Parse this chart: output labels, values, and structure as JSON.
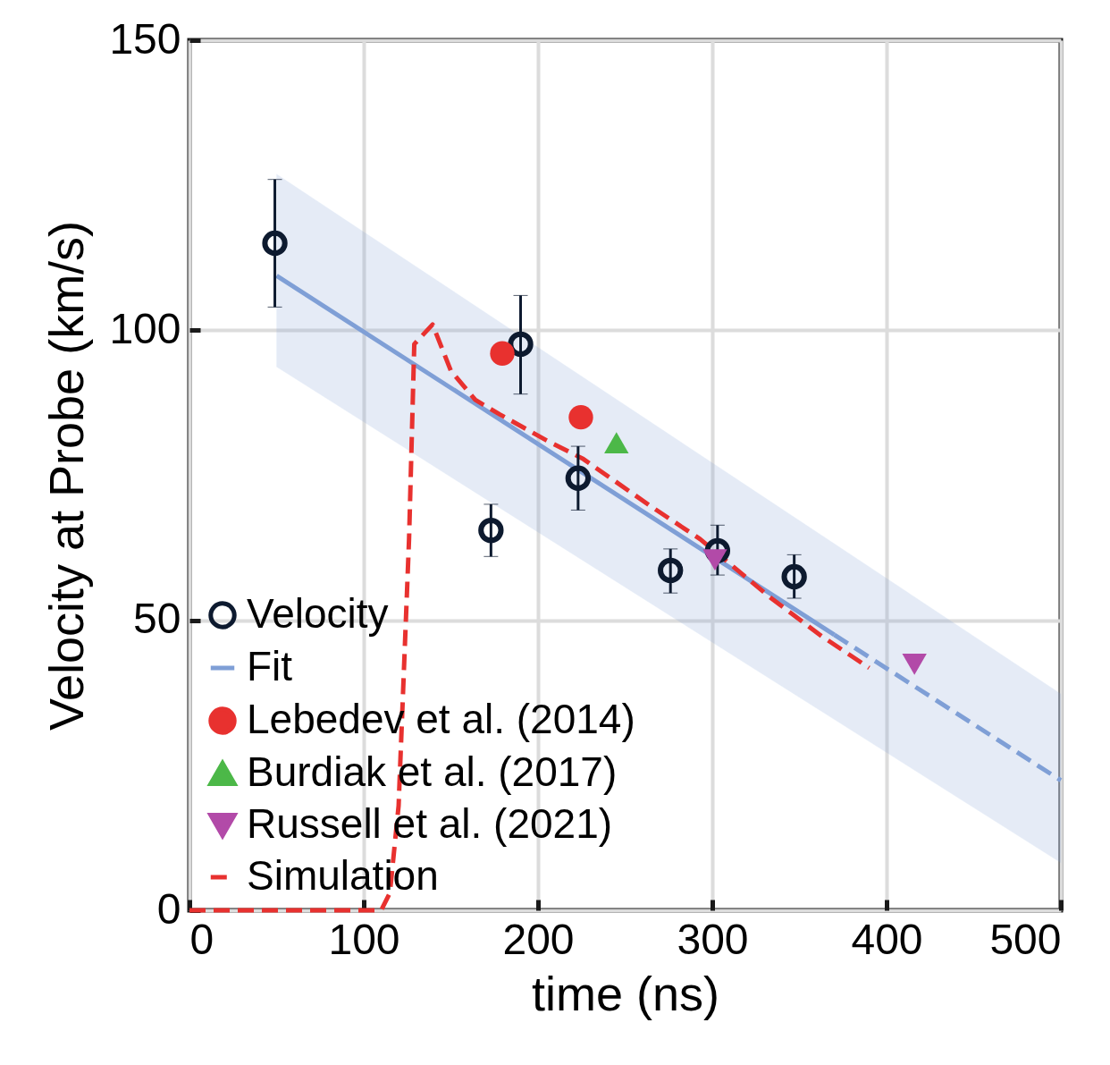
{
  "chart_data": {
    "type": "scatter",
    "xlabel": "time (ns)",
    "ylabel": "Velocity at Probe (km/s)",
    "xlim": [
      0,
      500
    ],
    "ylim": [
      0,
      150
    ],
    "xticks": [
      0,
      100,
      200,
      300,
      400,
      500
    ],
    "yticks": [
      0,
      50,
      100,
      150
    ],
    "grid": true,
    "legend": "bottom left",
    "series": [
      {
        "name": "Velocity",
        "type": "scatter",
        "color": "#0d1a2f",
        "marker": "circle",
        "x": [
          49,
          173,
          190,
          223,
          276,
          303,
          347
        ],
        "values": [
          115,
          65.5,
          97.6,
          74.5,
          58.6,
          62,
          57.5
        ],
        "errors": [
          [
            104,
            126
          ],
          [
            61,
            70
          ],
          [
            89,
            106
          ],
          [
            69,
            80
          ],
          [
            54.7,
            62.3
          ],
          [
            57.8,
            66.4
          ],
          [
            53.8,
            61.3
          ]
        ]
      },
      {
        "name": "Fit",
        "type": "line",
        "color": "#7f9fd6",
        "line_style": "solid",
        "x": [
          50,
          370
        ],
        "values": [
          109.4,
          47.5
        ]
      },
      {
        "type": "line",
        "color": "#7f9fd6",
        "line_style": "dashed",
        "x": [
          50,
          370,
          500
        ],
        "values": [
          null,
          47.5,
          22.4
        ],
        "lower": [
          93.7,
          32.9,
          8.2
        ],
        "upper": [
          126.9,
          63.2,
          37.3
        ]
      },
      {
        "name": "Lebedev et al. (2014)",
        "type": "scatter",
        "color": "#e8312f",
        "marker": "circle",
        "x": [
          179.5,
          224.6
        ],
        "values": [
          96,
          85
        ]
      },
      {
        "name": "Burdiak et al. (2017)",
        "type": "scatter",
        "color": "#4cb848",
        "marker": "triangle",
        "x": [
          245
        ],
        "values": [
          80.6
        ]
      },
      {
        "name": "Russell et al. (2021)",
        "type": "scatter",
        "color": "#b24aa8",
        "marker": "triangle-down",
        "x": [
          301.5,
          416
        ],
        "values": [
          60.4,
          42.4
        ]
      },
      {
        "name": "Simulation",
        "type": "line",
        "color": "#e8312f",
        "line_style": "dashed",
        "x": [
          0,
          110,
          115,
          120,
          126,
          129,
          139.5,
          150,
          164,
          178,
          205,
          226,
          264,
          293,
          333,
          362.6,
          390
        ],
        "values": [
          0,
          0,
          3,
          18,
          64,
          97.6,
          101,
          93,
          88,
          85.5,
          81,
          77.8,
          69.8,
          64,
          54,
          47.3,
          41.8
        ]
      }
    ]
  }
}
